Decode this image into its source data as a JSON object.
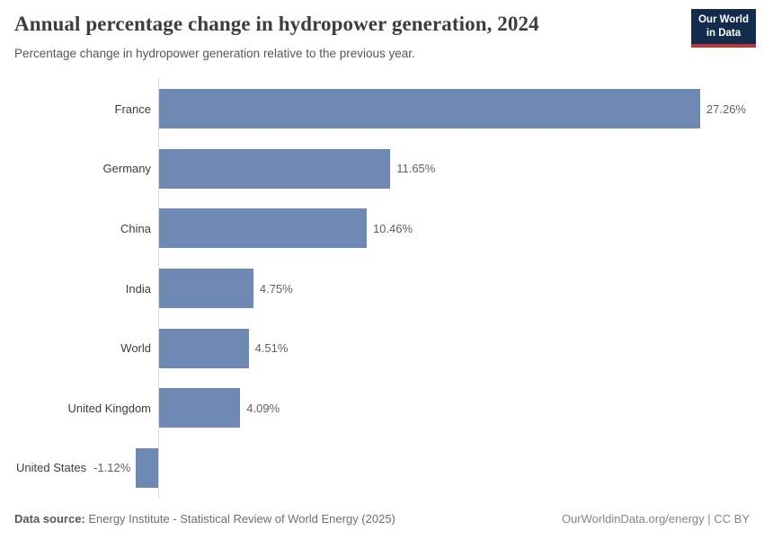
{
  "header": {
    "title": "Annual percentage change in hydropower generation, 2024",
    "subtitle": "Percentage change in hydropower generation relative to the previous year.",
    "logo": {
      "line1": "Our World",
      "line2": "in Data",
      "bg_color": "#132c4e",
      "accent_color": "#bf3734"
    }
  },
  "chart_data": {
    "type": "bar",
    "orientation": "horizontal",
    "title": "Annual percentage change in hydropower generation, 2024",
    "xlabel": "",
    "ylabel": "",
    "categories": [
      "France",
      "Germany",
      "China",
      "India",
      "World",
      "United Kingdom",
      "United States"
    ],
    "values": [
      27.26,
      11.65,
      10.46,
      4.75,
      4.51,
      4.09,
      -1.12
    ],
    "value_labels": [
      "27.26%",
      "11.65%",
      "10.46%",
      "4.75%",
      "4.51%",
      "4.09%",
      "-1.12%"
    ],
    "unit": "%",
    "xlim": [
      -1.5,
      28
    ],
    "grid": false,
    "legend": false,
    "bar_color": "#6e89b3",
    "axis_line_color": "#dbdbdb",
    "category_label_color": "#3d3d3d",
    "value_label_color": "#616161"
  },
  "footer": {
    "source_label": "Data source:",
    "source_text": " Energy Institute - Statistical Review of World Energy (2025)",
    "right_text": "OurWorldinData.org/energy | CC BY"
  }
}
